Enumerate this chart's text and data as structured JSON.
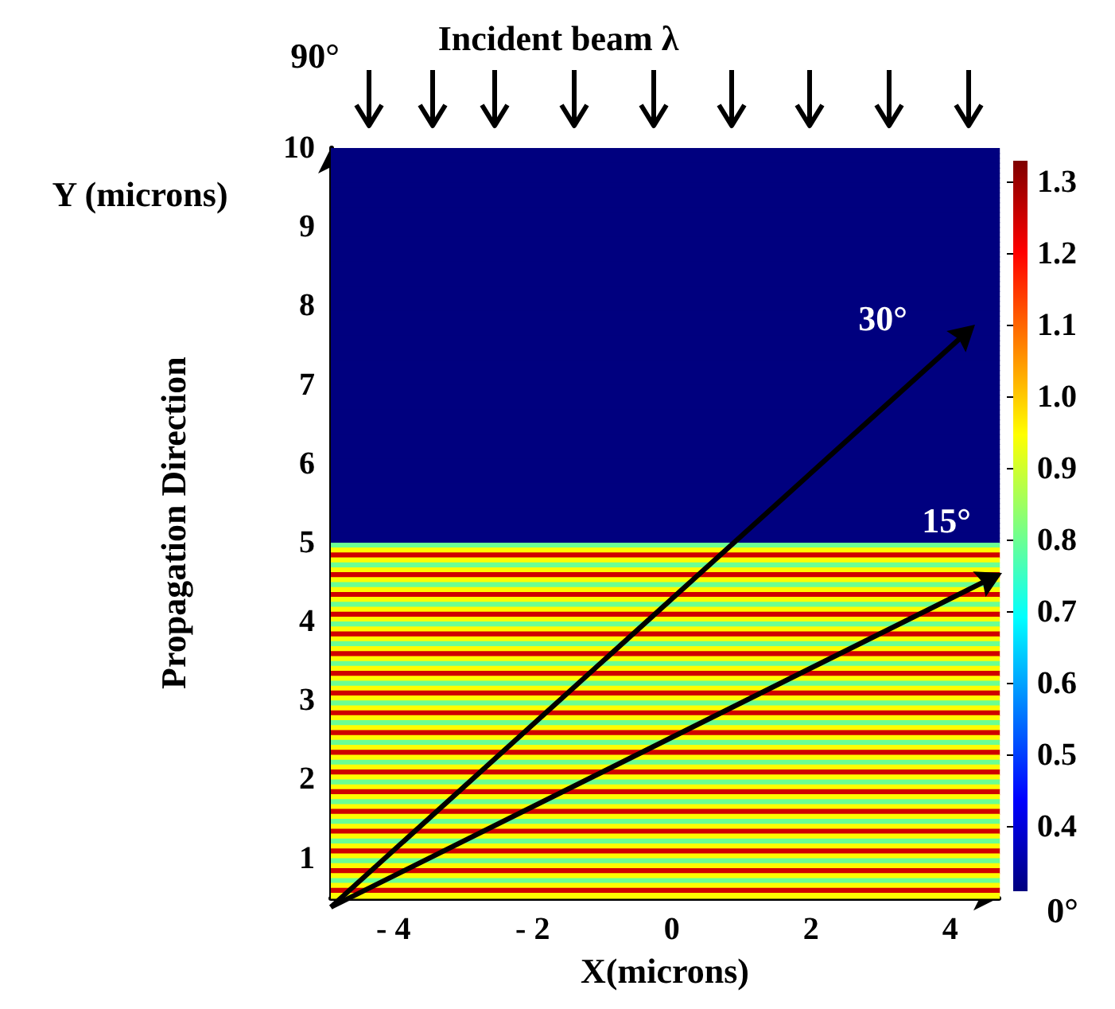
{
  "chart_data": {
    "type": "heatmap",
    "title": "Incident beam λ",
    "xlabel": "X(microns)",
    "ylabel": "Propagation Direction",
    "xlim": [
      -4.9,
      4.7
    ],
    "xticks": [
      {
        "value": -4,
        "label": "- 4"
      },
      {
        "value": -2,
        "label": "- 2"
      },
      0,
      2,
      4
    ],
    "ylim": [
      0.5,
      10
    ],
    "yticks": [
      1,
      2,
      3,
      4,
      5,
      6,
      7,
      8,
      9,
      10
    ],
    "clim": [
      0.31,
      1.33
    ],
    "cticks": [
      0.4,
      0.5,
      0.6,
      0.7,
      0.8,
      0.9,
      {
        "value": 1.0,
        "label": "1.0"
      },
      1.1,
      1.2,
      1.3
    ],
    "cells": [
      [
        0.31
      ],
      [
        0.31
      ],
      [
        0.31
      ],
      [
        0.31
      ],
      [
        0.31
      ],
      [
        0.31
      ],
      [
        0.31
      ],
      [
        0.31
      ],
      [
        0.31
      ],
      [
        0.31
      ],
      [
        0.31
      ],
      [
        0.31
      ],
      [
        0.31
      ],
      [
        0.31
      ],
      [
        0.31
      ],
      [
        0.31
      ],
      [
        0.31
      ],
      [
        0.31
      ],
      [
        0.31
      ],
      [
        0.31
      ],
      [
        0.31
      ],
      [
        0.31
      ],
      [
        0.31
      ],
      [
        0.31
      ],
      [
        0.31
      ],
      [
        0.31
      ],
      [
        0.31
      ],
      [
        0.31
      ],
      [
        0.31
      ],
      [
        0.31
      ],
      [
        0.31
      ],
      [
        0.31
      ],
      [
        0.31
      ],
      [
        0.31
      ],
      [
        0.31
      ],
      [
        0.31
      ],
      [
        0.31
      ],
      [
        0.31
      ],
      [
        0.31
      ],
      [
        0.31
      ],
      [
        0.31
      ],
      [
        0.31
      ],
      [
        0.31
      ],
      [
        0.31
      ],
      [
        0.31
      ],
      [
        0.31
      ],
      [
        0.31
      ],
      [
        0.31
      ],
      [
        0.31
      ],
      [
        0.31
      ],
      [
        0.31
      ],
      [
        0.31
      ],
      [
        0.31
      ],
      [
        0.31
      ],
      [
        0.31
      ],
      [
        0.31
      ],
      [
        0.31
      ],
      [
        0.31
      ],
      [
        0.31
      ],
      [
        0.31
      ],
      [
        0.31
      ],
      [
        0.31
      ],
      [
        0.31
      ],
      [
        0.31
      ],
      [
        0.31
      ],
      [
        0.31
      ],
      [
        0.31
      ],
      [
        0.31
      ],
      [
        0.31
      ],
      [
        0.31
      ],
      [
        0.31
      ],
      [
        0.31
      ],
      [
        0.31
      ],
      [
        0.31
      ],
      [
        0.31
      ],
      [
        0.31
      ],
      [
        0.31
      ],
      [
        0.31
      ],
      [
        0.31
      ],
      [
        0.31
      ],
      [
        0.8
      ],
      [
        0.95
      ],
      [
        1.25
      ],
      [
        0.95
      ],
      [
        0.8
      ],
      [
        0.95
      ],
      [
        1.25
      ],
      [
        0.95
      ],
      [
        0.8
      ],
      [
        0.95
      ],
      [
        1.25
      ],
      [
        0.95
      ],
      [
        0.8
      ],
      [
        0.95
      ],
      [
        1.25
      ],
      [
        0.95
      ],
      [
        0.8
      ],
      [
        0.95
      ],
      [
        1.25
      ],
      [
        0.95
      ],
      [
        0.8
      ],
      [
        0.95
      ],
      [
        1.25
      ],
      [
        0.95
      ],
      [
        0.8
      ],
      [
        0.95
      ],
      [
        1.25
      ],
      [
        0.95
      ],
      [
        0.8
      ],
      [
        0.95
      ],
      [
        1.25
      ],
      [
        0.95
      ],
      [
        0.8
      ],
      [
        0.95
      ],
      [
        1.25
      ],
      [
        0.95
      ],
      [
        0.8
      ],
      [
        0.95
      ],
      [
        1.25
      ],
      [
        0.95
      ],
      [
        0.8
      ],
      [
        0.95
      ],
      [
        1.25
      ],
      [
        0.95
      ],
      [
        0.8
      ],
      [
        0.95
      ],
      [
        1.25
      ],
      [
        0.95
      ],
      [
        0.8
      ],
      [
        0.95
      ],
      [
        1.25
      ],
      [
        0.95
      ],
      [
        0.8
      ],
      [
        0.95
      ],
      [
        1.25
      ],
      [
        0.95
      ],
      [
        0.8
      ],
      [
        0.95
      ],
      [
        1.25
      ],
      [
        0.95
      ],
      [
        0.8
      ],
      [
        0.95
      ],
      [
        1.25
      ],
      [
        0.95
      ],
      [
        0.8
      ],
      [
        0.95
      ],
      [
        1.25
      ],
      [
        0.95
      ],
      [
        0.8
      ],
      [
        0.95
      ],
      [
        1.25
      ],
      [
        0.95
      ]
    ],
    "annotations": [
      "30°",
      "15°",
      "90°",
      "0°",
      "Y (microns)"
    ]
  }
}
